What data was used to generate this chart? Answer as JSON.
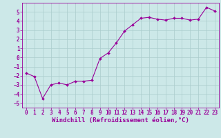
{
  "x": [
    0,
    1,
    2,
    3,
    4,
    5,
    6,
    7,
    8,
    9,
    10,
    11,
    12,
    13,
    14,
    15,
    16,
    17,
    18,
    19,
    20,
    21,
    22,
    23
  ],
  "y": [
    -1.7,
    -2.1,
    -4.5,
    -3.0,
    -2.8,
    -3.0,
    -2.6,
    -2.6,
    -2.5,
    -0.1,
    0.5,
    1.6,
    2.9,
    3.6,
    4.3,
    4.4,
    4.2,
    4.1,
    4.3,
    4.3,
    4.1,
    4.2,
    5.5,
    5.1
  ],
  "xlabel": "Windchill (Refroidissement éolien,°C)",
  "xlim": [
    -0.5,
    23.5
  ],
  "ylim": [
    -5.5,
    6.0
  ],
  "yticks": [
    -5,
    -4,
    -3,
    -2,
    -1,
    0,
    1,
    2,
    3,
    4,
    5
  ],
  "xticks": [
    0,
    1,
    2,
    3,
    4,
    5,
    6,
    7,
    8,
    9,
    10,
    11,
    12,
    13,
    14,
    15,
    16,
    17,
    18,
    19,
    20,
    21,
    22,
    23
  ],
  "line_color": "#990099",
  "marker_color": "#990099",
  "bg_color": "#cce8e8",
  "grid_color": "#aacccc",
  "tick_label_fontsize": 5.5,
  "xlabel_fontsize": 6.5
}
